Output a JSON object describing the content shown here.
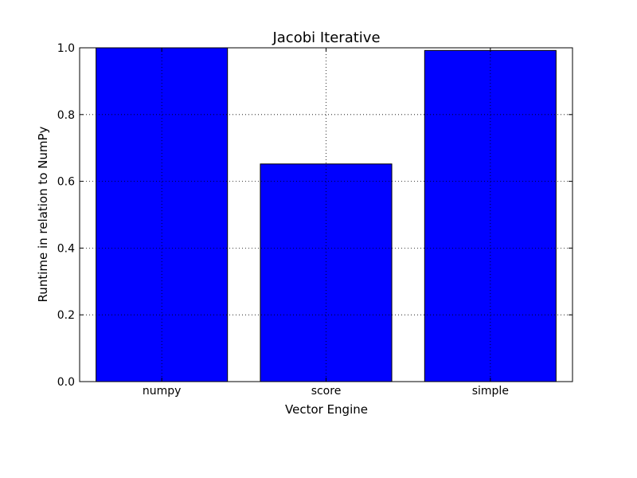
{
  "chart_data": {
    "type": "bar",
    "title": "Jacobi Iterative",
    "xlabel": "Vector Engine",
    "ylabel": "Runtime in relation to NumPy",
    "categories": [
      "numpy",
      "score",
      "simple"
    ],
    "values": [
      1.0,
      0.652,
      0.992
    ],
    "ylim": [
      0,
      1.0
    ],
    "yticks": [
      "0.0",
      "0.2",
      "0.4",
      "0.6",
      "0.8",
      "1.0"
    ],
    "grid": true,
    "bar_color": "#0000ff",
    "legend": "none"
  }
}
